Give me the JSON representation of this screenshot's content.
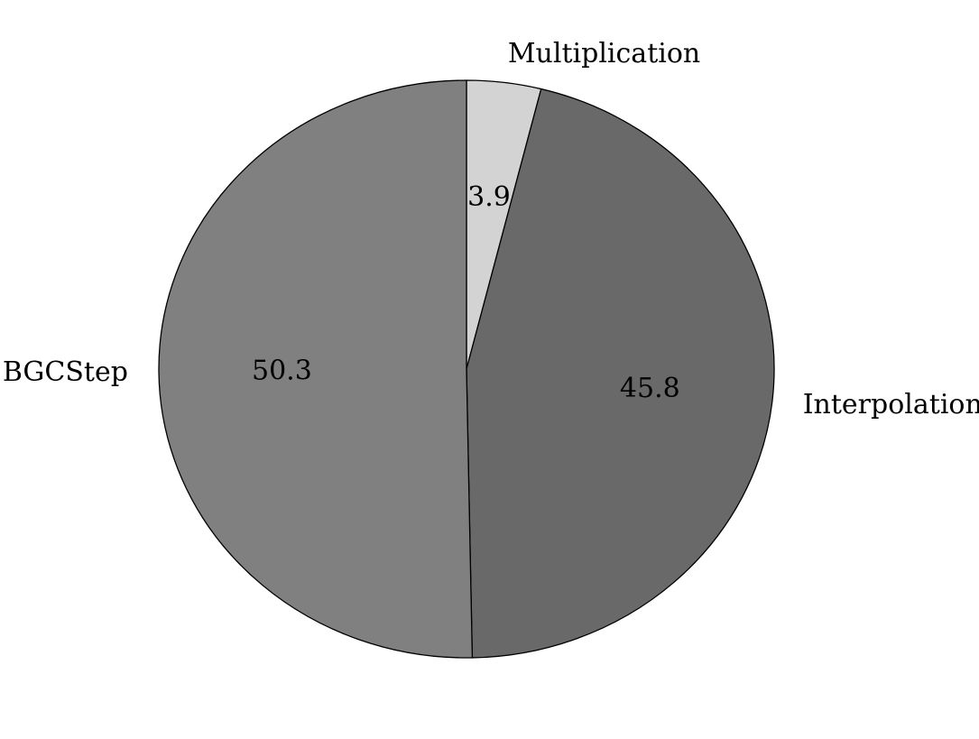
{
  "chart_data": {
    "type": "pie",
    "title": "",
    "start_angle": "12 o'clock",
    "direction": "clockwise",
    "slices": [
      {
        "label": "Multiplication",
        "value": 3.9,
        "value_label": "3.9",
        "color": "#d3d3d3"
      },
      {
        "label": "Interpolation",
        "value": 45.8,
        "value_label": "45.8",
        "color": "#696969"
      },
      {
        "label": "BGCStep",
        "value": 50.3,
        "value_label": "50.3",
        "color": "#808080"
      }
    ],
    "edge_color": "#000000",
    "legend": "none"
  }
}
